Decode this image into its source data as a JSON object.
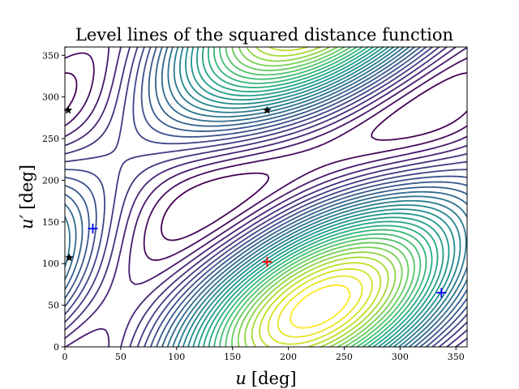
{
  "chart_data": {
    "type": "contour",
    "title": "Level lines of the squared distance function",
    "xlabel_var": "u",
    "ylabel_var": "u′",
    "xlabel_unit": "[deg]",
    "ylabel_unit": "[deg]",
    "xlim": [
      0,
      360
    ],
    "ylim": [
      0,
      360
    ],
    "xticks": [
      0,
      50,
      100,
      150,
      200,
      250,
      300,
      350
    ],
    "yticks": [
      0,
      50,
      100,
      150,
      200,
      250,
      300,
      350
    ],
    "grid": false,
    "colormap": "viridis",
    "contour_levels": 30,
    "markers": [
      {
        "name": "maximum",
        "shape": "plus",
        "color": "#ff0000",
        "x": 181,
        "y": 102
      },
      {
        "name": "minimum",
        "shape": "plus",
        "color": "#0000ff",
        "x": 25,
        "y": 142
      },
      {
        "name": "minimum",
        "shape": "plus",
        "color": "#0000ff",
        "x": 337,
        "y": 65
      },
      {
        "name": "saddle",
        "shape": "star",
        "color": "#000000",
        "x": 3,
        "y": 284
      },
      {
        "name": "saddle",
        "shape": "star",
        "color": "#000000",
        "x": 181,
        "y": 284
      },
      {
        "name": "saddle",
        "shape": "star",
        "color": "#000000",
        "x": 4,
        "y": 107
      }
    ]
  }
}
